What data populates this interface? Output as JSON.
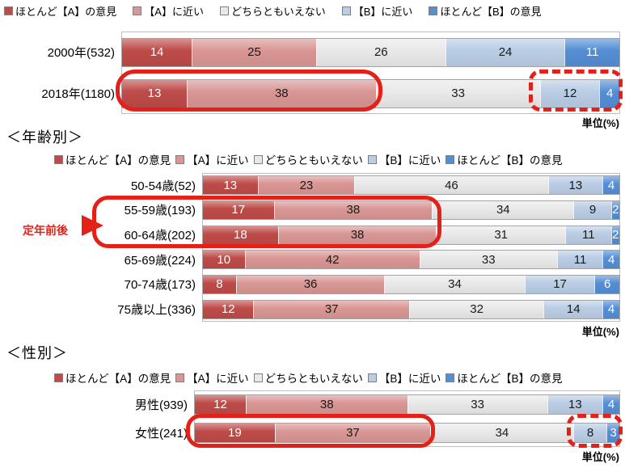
{
  "colors": {
    "segments": [
      "#BE4B48",
      "#D99694",
      "#E9E9E9",
      "#B9CDE5",
      "#558ED5"
    ],
    "highlight_red": "#E32119",
    "value_text_light": "#FFFFFF",
    "value_text_dark": "#1A1A1A"
  },
  "legend_items": [
    "ほとんど【A】の意見",
    "【A】に近い",
    "どちらともいえない",
    "【B】に近い",
    "ほとんど【B】の意見"
  ],
  "unit_label": "単位(%)",
  "sections": {
    "age_title": "＜年齢別＞",
    "gender_title": "＜性別＞"
  },
  "annotation": {
    "label": "定年前後"
  },
  "chart_data": [
    {
      "type": "bar",
      "stacked": true,
      "orientation": "horizontal",
      "unit": "単位(%)",
      "xlim": [
        0,
        100
      ],
      "categories": [
        "2000年(532)",
        "2018年(1180)"
      ],
      "series": [
        {
          "name": "ほとんど【A】の意見",
          "values": [
            14,
            13
          ]
        },
        {
          "name": "【A】に近い",
          "values": [
            25,
            38
          ]
        },
        {
          "name": "どちらともいえない",
          "values": [
            26,
            33
          ]
        },
        {
          "name": "【B】に近い",
          "values": [
            24,
            12
          ]
        },
        {
          "name": "ほとんど【B】の意見",
          "values": [
            11,
            4
          ]
        }
      ],
      "legend_position": "top",
      "highlights": [
        {
          "style": "solid",
          "category": "2018年(1180)",
          "segments": [
            "ほとんど【A】の意見",
            "【A】に近い"
          ]
        },
        {
          "style": "dashed",
          "category": "2018年(1180)",
          "segments": [
            "【B】に近い",
            "ほとんど【B】の意見"
          ]
        }
      ]
    },
    {
      "type": "bar",
      "stacked": true,
      "orientation": "horizontal",
      "title": "＜年齢別＞",
      "unit": "単位(%)",
      "xlim": [
        0,
        100
      ],
      "categories": [
        "50-54歳(52)",
        "55-59歳(193)",
        "60-64歳(202)",
        "65-69歳(224)",
        "70-74歳(173)",
        "75歳以上(336)"
      ],
      "series": [
        {
          "name": "ほとんど【A】の意見",
          "values": [
            13,
            17,
            18,
            10,
            8,
            12
          ]
        },
        {
          "name": "【A】に近い",
          "values": [
            23,
            38,
            38,
            42,
            36,
            37
          ]
        },
        {
          "name": "どちらともいえない",
          "values": [
            46,
            34,
            31,
            33,
            34,
            32
          ]
        },
        {
          "name": "【B】に近い",
          "values": [
            13,
            9,
            11,
            11,
            17,
            14
          ]
        },
        {
          "name": "ほとんど【B】の意見",
          "values": [
            4,
            2,
            2,
            4,
            6,
            4
          ]
        }
      ],
      "legend_position": "top",
      "highlights": [
        {
          "style": "solid",
          "categories": [
            "55-59歳(193)",
            "60-64歳(202)"
          ],
          "segments": [
            "ほとんど【A】の意見",
            "【A】に近い"
          ],
          "annotation": "定年前後"
        }
      ]
    },
    {
      "type": "bar",
      "stacked": true,
      "orientation": "horizontal",
      "title": "＜性別＞",
      "unit": "単位(%)",
      "xlim": [
        0,
        100
      ],
      "categories": [
        "男性(939)",
        "女性(241)"
      ],
      "series": [
        {
          "name": "ほとんど【A】の意見",
          "values": [
            12,
            19
          ]
        },
        {
          "name": "【A】に近い",
          "values": [
            38,
            37
          ]
        },
        {
          "name": "どちらともいえない",
          "values": [
            33,
            34
          ]
        },
        {
          "name": "【B】に近い",
          "values": [
            13,
            8
          ]
        },
        {
          "name": "ほとんど【B】の意見",
          "values": [
            4,
            3
          ]
        }
      ],
      "legend_position": "top",
      "highlights": [
        {
          "style": "solid",
          "category": "女性(241)",
          "segments": [
            "ほとんど【A】の意見",
            "【A】に近い"
          ]
        },
        {
          "style": "dashed",
          "category": "女性(241)",
          "segments": [
            "【B】に近い",
            "ほとんど【B】の意見"
          ]
        }
      ]
    }
  ]
}
